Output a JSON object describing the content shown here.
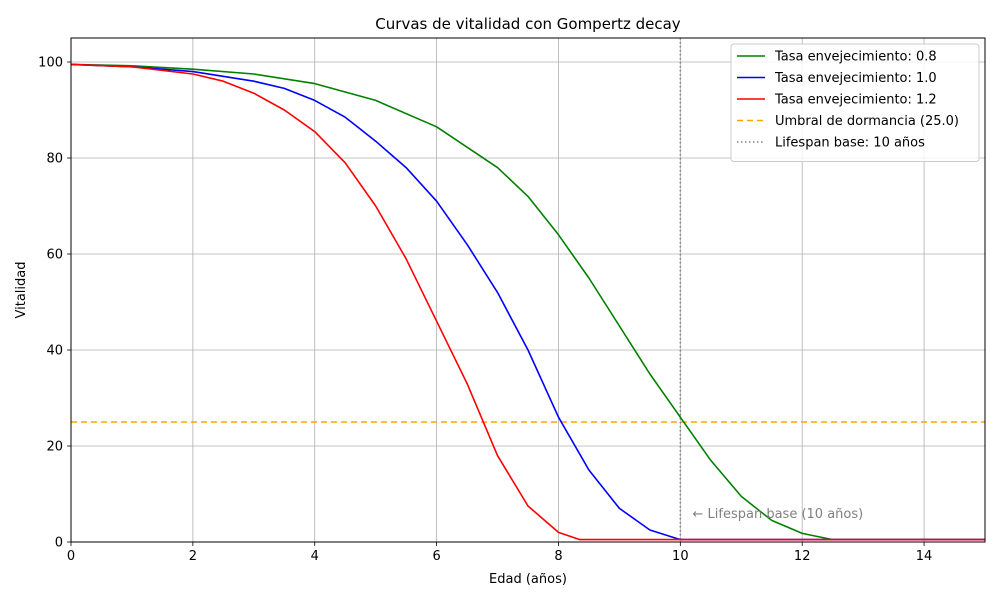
{
  "chart_data": {
    "type": "line",
    "title": "Curvas de vitalidad con Gompertz decay",
    "xlabel": "Edad (años)",
    "ylabel": "Vitalidad",
    "xlim": [
      0,
      15
    ],
    "ylim": [
      0,
      105
    ],
    "xticks": [
      0,
      2,
      4,
      6,
      8,
      10,
      12,
      14
    ],
    "yticks": [
      0,
      20,
      40,
      60,
      80,
      100
    ],
    "grid": true,
    "legend_position": "top-right",
    "series": [
      {
        "name": "Tasa envejecimiento: 0.8",
        "color": "#008000",
        "style": "solid",
        "x": [
          0,
          1,
          2,
          3,
          4,
          5,
          6,
          7,
          7.5,
          8,
          8.5,
          9,
          9.5,
          10,
          10.5,
          11,
          11.5,
          12,
          12.5,
          13,
          14,
          15
        ],
        "y": [
          99.5,
          99.2,
          98.5,
          97.5,
          95.5,
          92.0,
          86.5,
          78.0,
          72.0,
          64.0,
          55.0,
          45.0,
          35.0,
          26.0,
          17.0,
          9.5,
          4.5,
          1.8,
          0.5,
          0.5,
          0.5,
          0.5
        ]
      },
      {
        "name": "Tasa envejecimiento: 1.0",
        "color": "#0000ff",
        "style": "solid",
        "x": [
          0,
          1,
          2,
          3,
          3.5,
          4,
          4.5,
          5,
          5.5,
          6,
          6.5,
          7,
          7.5,
          8,
          8.5,
          9,
          9.5,
          10,
          11,
          12,
          13,
          14,
          15
        ],
        "y": [
          99.5,
          99.0,
          98.0,
          96.0,
          94.5,
          92.0,
          88.5,
          83.5,
          78.0,
          71.0,
          62.0,
          52.0,
          40.0,
          26.0,
          15.0,
          7.0,
          2.5,
          0.5,
          0.5,
          0.5,
          0.5,
          0.5,
          0.5
        ]
      },
      {
        "name": "Tasa envejecimiento: 1.2",
        "color": "#ff0000",
        "style": "solid",
        "x": [
          0,
          1,
          2,
          2.5,
          3,
          3.5,
          4,
          4.5,
          5,
          5.5,
          6,
          6.5,
          7,
          7.5,
          8,
          8.35,
          9,
          10,
          11,
          12,
          13,
          14,
          15
        ],
        "y": [
          99.5,
          99.0,
          97.5,
          96.0,
          93.5,
          90.0,
          85.5,
          79.0,
          70.0,
          59.0,
          46.0,
          33.0,
          18.0,
          7.5,
          2.0,
          0.5,
          0.5,
          0.5,
          0.5,
          0.5,
          0.5,
          0.5,
          0.5
        ]
      }
    ],
    "reference_lines": [
      {
        "name": "Umbral de dormancia (25.0)",
        "orientation": "horizontal",
        "value": 25.0,
        "color": "#ffa500",
        "style": "dashed"
      },
      {
        "name": "Lifespan base: 10 años",
        "orientation": "vertical",
        "value": 10,
        "color": "#808080",
        "style": "dotted"
      }
    ],
    "annotations": [
      {
        "text": "← Lifespan base (10 años)",
        "x": 10.2,
        "y": 5,
        "color": "#808080"
      }
    ]
  }
}
